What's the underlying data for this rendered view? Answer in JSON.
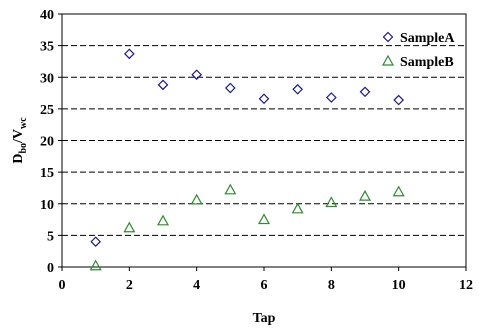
{
  "chart_data": {
    "type": "scatter",
    "title": "",
    "xlabel": "Tap",
    "ylabel": {
      "main": "D",
      "sub1": "bo",
      "mid": "/V",
      "sub2": "wc"
    },
    "xlim": [
      0,
      12
    ],
    "ylim": [
      0,
      40
    ],
    "xticks": [
      "0",
      "2",
      "4",
      "6",
      "8",
      "10",
      "12"
    ],
    "yticks": [
      "0",
      "5",
      "10",
      "15",
      "20",
      "25",
      "30",
      "35",
      "40"
    ],
    "grid": "horizontal dashed",
    "legend_position": "top-right",
    "series": [
      {
        "name": "SampleA",
        "marker": "diamond",
        "color": "#1a1a8c",
        "x": [
          1,
          2,
          3,
          4,
          5,
          6,
          7,
          8,
          9,
          10
        ],
        "y": [
          4.0,
          33.7,
          28.8,
          30.4,
          28.3,
          26.6,
          28.1,
          26.8,
          27.7,
          26.4
        ]
      },
      {
        "name": "SampleB",
        "marker": "triangle",
        "color": "#2e8b2e",
        "x": [
          1,
          2,
          3,
          4,
          5,
          6,
          7,
          8,
          9,
          10
        ],
        "y": [
          0.2,
          6.2,
          7.3,
          10.6,
          12.2,
          7.5,
          9.2,
          10.2,
          11.2,
          11.9
        ]
      }
    ]
  }
}
